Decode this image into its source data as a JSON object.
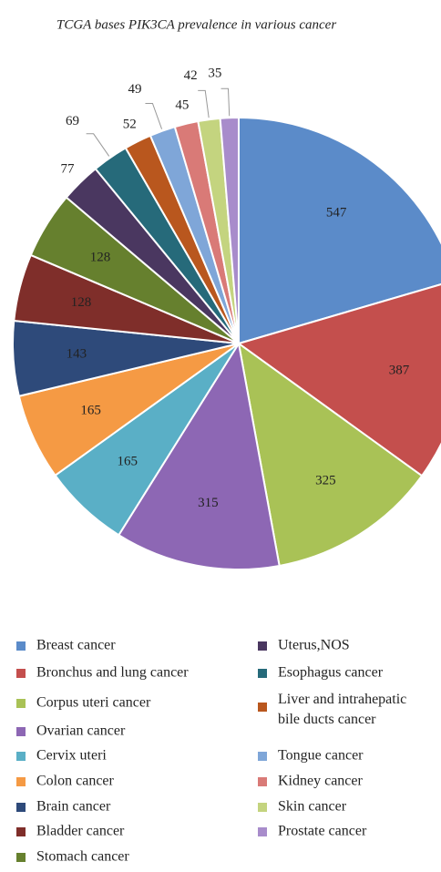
{
  "chart_data": {
    "type": "pie",
    "title": "TCGA bases PIK3CA prevalence in various cancer",
    "categories": [
      "Breast cancer",
      "Bronchus and lung cancer",
      "Corpus uteri cancer",
      "Ovarian cancer",
      "Cervix uteri",
      "Colon cancer",
      "Brain cancer",
      "Bladder cancer",
      "Stomach cancer",
      "Uterus,NOS",
      "Esophagus cancer",
      "Liver and intrahepatic bile ducts cancer",
      "Tongue cancer",
      "Kidney cancer",
      "Skin cancer",
      "Prostate cancer"
    ],
    "values": [
      547,
      387,
      325,
      315,
      165,
      165,
      143,
      128,
      128,
      77,
      69,
      52,
      49,
      45,
      42,
      35
    ],
    "colors": [
      "#5b8bc9",
      "#c44f4d",
      "#a9c256",
      "#8d67b4",
      "#5aafc6",
      "#f59a44",
      "#2e4a7a",
      "#7f2e2a",
      "#66802e",
      "#4a3760",
      "#266a7a",
      "#b9571e",
      "#7fa6d8",
      "#d97a77",
      "#c4d47f",
      "#a88ccb"
    ],
    "legend": "bottom"
  }
}
